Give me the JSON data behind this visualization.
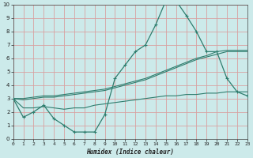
{
  "x": [
    0,
    1,
    2,
    3,
    4,
    5,
    6,
    7,
    8,
    9,
    10,
    11,
    12,
    13,
    14,
    15,
    16,
    17,
    18,
    19,
    20,
    21,
    22,
    23
  ],
  "line_spiky": [
    3.0,
    1.6,
    2.0,
    2.5,
    1.5,
    1.0,
    0.5,
    0.5,
    0.5,
    1.8,
    4.5,
    5.5,
    6.5,
    7.0,
    8.5,
    10.3,
    10.3,
    9.2,
    8.0,
    6.5,
    6.5,
    4.5,
    3.5,
    3.2
  ],
  "line_top": [
    3.0,
    3.0,
    3.1,
    3.2,
    3.2,
    3.3,
    3.4,
    3.5,
    3.6,
    3.7,
    3.9,
    4.1,
    4.3,
    4.5,
    4.8,
    5.1,
    5.4,
    5.7,
    6.0,
    6.2,
    6.5,
    6.6,
    6.6,
    6.6
  ],
  "line_mid": [
    3.0,
    2.9,
    3.0,
    3.1,
    3.1,
    3.2,
    3.3,
    3.4,
    3.5,
    3.6,
    3.8,
    4.0,
    4.2,
    4.4,
    4.7,
    5.0,
    5.3,
    5.6,
    5.9,
    6.1,
    6.3,
    6.5,
    6.5,
    6.5
  ],
  "line_bot": [
    3.0,
    2.3,
    2.3,
    2.4,
    2.3,
    2.2,
    2.3,
    2.3,
    2.5,
    2.6,
    2.7,
    2.8,
    2.9,
    3.0,
    3.1,
    3.2,
    3.2,
    3.3,
    3.3,
    3.4,
    3.4,
    3.5,
    3.5,
    3.5
  ],
  "color": "#2e7d6e",
  "bg_color": "#cceaea",
  "grid_color": "#d9a0a0",
  "xlabel": "Humidex (Indice chaleur)",
  "xlim": [
    0,
    23
  ],
  "ylim": [
    0,
    10
  ],
  "xticks": [
    0,
    1,
    2,
    3,
    4,
    5,
    6,
    7,
    8,
    9,
    10,
    11,
    12,
    13,
    14,
    15,
    16,
    17,
    18,
    19,
    20,
    21,
    22,
    23
  ],
  "yticks": [
    0,
    1,
    2,
    3,
    4,
    5,
    6,
    7,
    8,
    9,
    10
  ]
}
